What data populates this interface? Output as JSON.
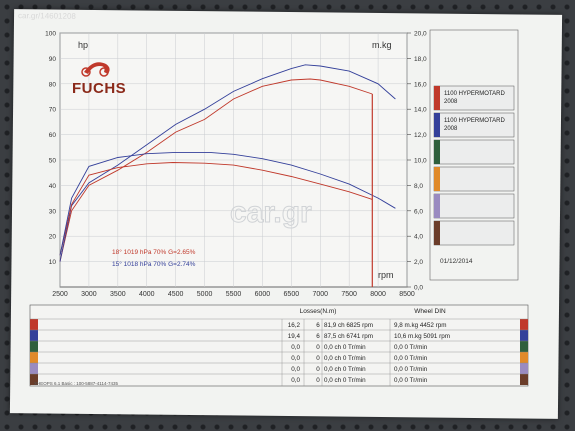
{
  "watermark": "car.gr/14601208",
  "site_watermark": "car.gr",
  "brand": "FUCHS",
  "chart_data": {
    "type": "line",
    "left_unit": "hp",
    "right_unit": "m.kg",
    "rpm_label": "rpm",
    "x_ticks": [
      "2500",
      "3000",
      "3500",
      "4000",
      "4500",
      "5000",
      "5500",
      "6000",
      "6500",
      "7000",
      "7500",
      "8000",
      "8500"
    ],
    "y_left_ticks": [
      "10",
      "20",
      "30",
      "40",
      "50",
      "60",
      "70",
      "80",
      "90",
      "100"
    ],
    "y_right_ticks": [
      "0,0",
      "2,0",
      "4,0",
      "6,0",
      "8,0",
      "10,0",
      "12,0",
      "14,0",
      "16,0",
      "18,0",
      "20,0"
    ],
    "xlim": [
      2500,
      8500
    ],
    "ylim_left": [
      0,
      100
    ],
    "ylim_right": [
      0,
      20
    ],
    "grid": true,
    "conditions": [
      {
        "text": "18°  1019 hPa  70%    G=2.65%",
        "color": "#c0392b"
      },
      {
        "text": "15°  1018 hPa  70%    G=2.74%",
        "color": "#34409a"
      }
    ],
    "series": [
      {
        "name": "1100 HYPERMOTARD 2008",
        "kind": "power",
        "color": "#c0392b",
        "x": [
          2500,
          2700,
          3000,
          3500,
          4000,
          4500,
          5000,
          5500,
          6000,
          6500,
          6825,
          7000,
          7500,
          7900
        ],
        "y": [
          10,
          30,
          40,
          46,
          53,
          61,
          66,
          74,
          79,
          81.5,
          81.9,
          81.5,
          79,
          76
        ]
      },
      {
        "name": "1100 HYPERMOTARD 2008",
        "kind": "power",
        "color": "#34409a",
        "x": [
          2500,
          2700,
          3000,
          3500,
          4000,
          4500,
          5000,
          5500,
          6000,
          6500,
          6741,
          7000,
          7500,
          8000,
          8300
        ],
        "y": [
          10,
          32,
          41,
          48,
          56,
          64,
          70,
          77,
          82,
          86,
          87.5,
          87,
          85,
          80,
          74
        ]
      },
      {
        "name": "1100 HYPERMOTARD 2008",
        "kind": "torque",
        "color": "#c0392b",
        "x": [
          2500,
          2700,
          3000,
          3500,
          4000,
          4452,
          5000,
          5500,
          6000,
          6500,
          7000,
          7500,
          7900
        ],
        "y": [
          2.5,
          6.5,
          8.8,
          9.4,
          9.7,
          9.8,
          9.75,
          9.6,
          9.2,
          8.7,
          8.1,
          7.5,
          6.9
        ]
      },
      {
        "name": "1100 HYPERMOTARD 2008",
        "kind": "torque",
        "color": "#34409a",
        "x": [
          2500,
          2700,
          3000,
          3500,
          4000,
          4500,
          5091,
          5500,
          6000,
          6500,
          7000,
          7500,
          8000,
          8300
        ],
        "y": [
          2.5,
          7,
          9.5,
          10.2,
          10.5,
          10.6,
          10.6,
          10.45,
          10.1,
          9.6,
          8.9,
          8.1,
          7.0,
          6.2
        ]
      }
    ]
  },
  "legend": [
    {
      "label": "1100 HYPERMOTARD\n2008",
      "color": "#c0392b"
    },
    {
      "label": "1100 HYPERMOTARD\n2008",
      "color": "#34409a"
    },
    {
      "label": "",
      "color": "#2f5f3c"
    },
    {
      "label": "",
      "color": "#e08a2a"
    },
    {
      "label": "",
      "color": "#9a8bc0"
    },
    {
      "label": "",
      "color": "#6b3d2a"
    }
  ],
  "date": "01/12/2014",
  "table": {
    "header_losses": "Losses(N.m)",
    "header_wheel": "Wheel DIN",
    "rows": [
      {
        "color": "#c0392b",
        "loss": "16,2",
        "g": "6",
        "power": "81,9 ch 6825 rpm",
        "torque": "9,8 m.kg 4452 rpm"
      },
      {
        "color": "#34409a",
        "loss": "19,4",
        "g": "6",
        "power": "87,5 ch 6741 rpm",
        "torque": "10,6 m.kg 5091 rpm"
      },
      {
        "color": "#2f5f3c",
        "loss": "0,0",
        "g": "0",
        "power": "0,0 ch 0 Tr/min",
        "torque": "0,0  0 Tr/min"
      },
      {
        "color": "#e08a2a",
        "loss": "0,0",
        "g": "0",
        "power": "0,0 ch 0 Tr/min",
        "torque": "0,0  0 Tr/min"
      },
      {
        "color": "#9a8bc0",
        "loss": "0,0",
        "g": "0",
        "power": "0,0 ch 0 Tr/min",
        "torque": "0,0  0 Tr/min"
      },
      {
        "color": "#6b3d2a",
        "loss": "0,0",
        "g": "0",
        "power": "0,0 ch 0 Tr/min",
        "torque": "0,0  0 Tr/min"
      }
    ]
  },
  "footer": "XHEOPS 6.1    Basic :  100-5887-4114-7435"
}
